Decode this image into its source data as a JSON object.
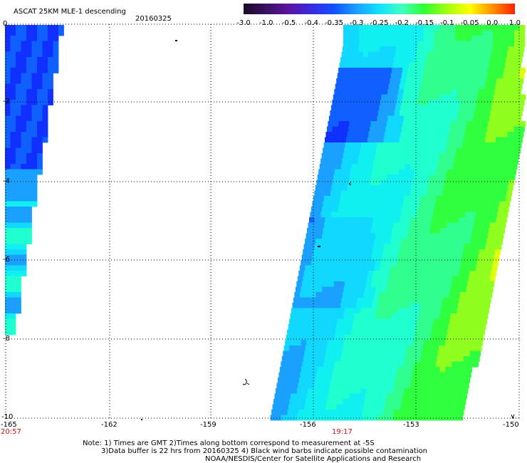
{
  "title": "ASCAT 25KM MLE-1 descending",
  "date": "20160325",
  "colorbar": {
    "ticks": [
      "-3.0",
      "-1.0",
      "-0.5",
      "-0.4",
      "-0.35",
      "-0.3",
      "-0.25",
      "-0.2",
      "-0.15",
      "-0.1",
      "-0.05",
      "0.0",
      "1.0"
    ],
    "colors": [
      "#1a0a26",
      "#3a1060",
      "#5a14a0",
      "#3a2ae0",
      "#1050ff",
      "#1aa0ff",
      "#10e0ff",
      "#40ffc0",
      "#30ff30",
      "#a0ff10",
      "#ffff00",
      "#ff9000",
      "#ff2000"
    ]
  },
  "axes": {
    "x_ticks": [
      "-165",
      "-162",
      "-159",
      "-156",
      "-153",
      "-150"
    ],
    "y_ticks": [
      "0",
      "-2",
      "-4",
      "-6",
      "-8",
      "-10"
    ],
    "x_range": [
      -165,
      -150
    ],
    "y_range": [
      0,
      -10
    ]
  },
  "times": {
    "left": "20:57",
    "middle": "19:17"
  },
  "notes": [
    "Note: 1) Times are GMT 2)Times along bottom correspond to measurement at -5S",
    "3)Data buffer is 22 hrs from 20160325 4) Black wind barbs indicate possible contamination",
    "NOAA/NESDIS/Center for Satellite Applications and Research"
  ]
}
